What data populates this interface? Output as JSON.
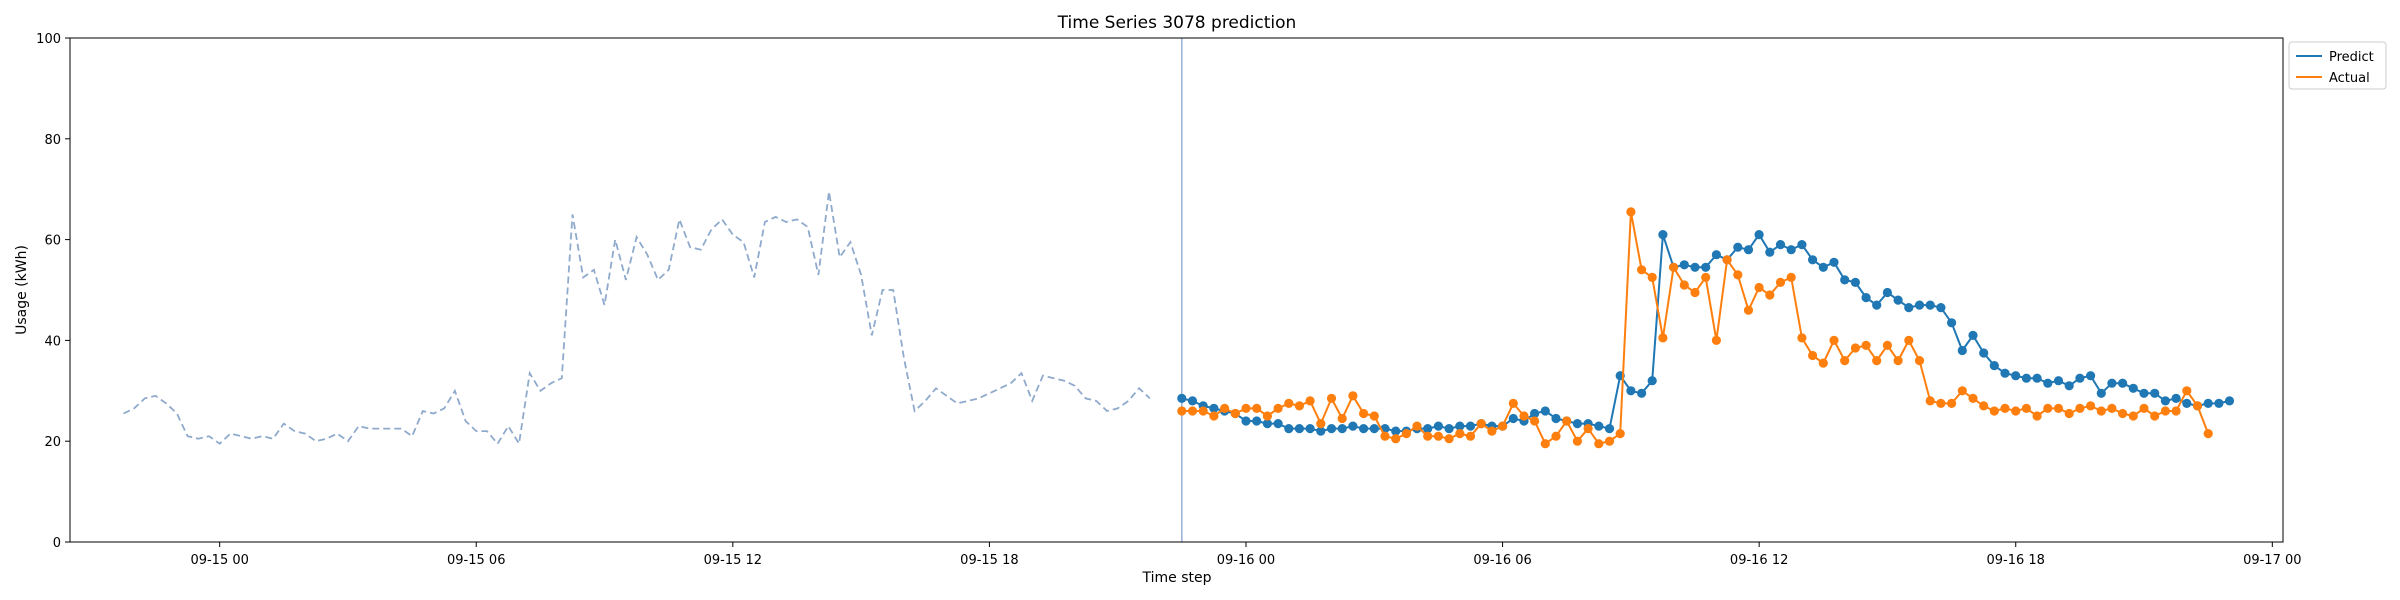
{
  "chart_data": {
    "type": "line",
    "title": "Time Series 3078 prediction",
    "xlabel": "Time step",
    "ylabel": "Usage (kWh)",
    "ylim": [
      0,
      100
    ],
    "yticks": [
      0,
      20,
      40,
      60,
      80,
      100
    ],
    "xlim_hours": [
      -7.0,
      96.5
    ],
    "xticks": [
      {
        "h": 0,
        "label": "09-15 00"
      },
      {
        "h": 12,
        "label": "09-15 06"
      },
      {
        "h": 24,
        "label": "09-15 12"
      },
      {
        "h": 36,
        "label": "09-15 18"
      },
      {
        "h": 48,
        "label": "09-16 00"
      },
      {
        "h": 60,
        "label": "09-16 06"
      },
      {
        "h": 72,
        "label": "09-16 12"
      },
      {
        "h": 84,
        "label": "09-16 18"
      },
      {
        "h": 96,
        "label": "09-17 00"
      }
    ],
    "grid": false,
    "legend_position": "top-right",
    "split_marker_hour": 45.0,
    "history": {
      "start_hour": -4.5,
      "step_hours": 0.5,
      "color": "#8faacc",
      "values": [
        25.5,
        26.5,
        28.5,
        29,
        27.5,
        25.5,
        21,
        20.5,
        21,
        19.5,
        21.5,
        21,
        20.5,
        21,
        20.5,
        23.5,
        22,
        21.5,
        20,
        20.5,
        21.5,
        20,
        23,
        22.5,
        22.5,
        22.5,
        22.5,
        21,
        26,
        25.5,
        26.5,
        30,
        24,
        22,
        22,
        19.5,
        23,
        19.5,
        33.5,
        30,
        31.5,
        32.5,
        65,
        52.5,
        54,
        47,
        60,
        52,
        60.5,
        57,
        52,
        54,
        64,
        58.5,
        58,
        62,
        64,
        61,
        59.5,
        52.5,
        63.5,
        64.5,
        63.5,
        64,
        62.5,
        53,
        69.5,
        56.5,
        59.5,
        53,
        41,
        50,
        50,
        36.5,
        26,
        28,
        30.5,
        29,
        27.5,
        28,
        28.5,
        29.5,
        30.5,
        31.5,
        33.5,
        28,
        33,
        32.5,
        32,
        31,
        28.5,
        28,
        26,
        26.5,
        28,
        30.5,
        28.5
      ]
    },
    "series": [
      {
        "name": "Predict",
        "color": "#1f77b4",
        "start_hour": 45.0,
        "step_hours": 0.5,
        "values": [
          28.5,
          28,
          27,
          26.5,
          26,
          25.5,
          24,
          24,
          23.5,
          23.5,
          22.5,
          22.5,
          22.5,
          22,
          22.5,
          22.5,
          23,
          22.5,
          22.5,
          22.5,
          22,
          22,
          22.5,
          22.5,
          23,
          22.5,
          23,
          23,
          23.5,
          23,
          23,
          24.5,
          24,
          25.5,
          26,
          24.5,
          24,
          23.5,
          23.5,
          23,
          22.5,
          33,
          30,
          29.5,
          32,
          61,
          54.5,
          55,
          54.5,
          54.5,
          57,
          56,
          58.5,
          58,
          61,
          57.5,
          59,
          58,
          59,
          56,
          54.5,
          55.5,
          52,
          51.5,
          48.5,
          47,
          49.5,
          48,
          46.5,
          47,
          47,
          46.5,
          43.5,
          38,
          41,
          37.5,
          35,
          33.5,
          33,
          32.5,
          32.5,
          31.5,
          32,
          31,
          32.5,
          33,
          29.5,
          31.5,
          31.5,
          30.5,
          29.5,
          29.5,
          28,
          28.5,
          27.5,
          27,
          27.5,
          27.5,
          28
        ]
      },
      {
        "name": "Actual",
        "color": "#ff7f0e",
        "start_hour": 45.0,
        "step_hours": 0.5,
        "values": [
          26,
          26,
          26,
          25,
          26.5,
          25.5,
          26.5,
          26.5,
          25,
          26.5,
          27.5,
          27,
          28,
          23.5,
          28.5,
          24.5,
          29,
          25.5,
          25,
          21,
          20.5,
          21.5,
          23,
          21,
          21,
          20.5,
          21.5,
          21,
          23.5,
          22,
          23,
          27.5,
          25,
          24,
          19.5,
          21,
          24,
          20,
          22.5,
          19.5,
          20,
          21.5,
          65.5,
          54,
          52.5,
          40.5,
          54.5,
          51,
          49.5,
          52.5,
          40,
          56,
          53,
          46,
          50.5,
          49,
          51.5,
          52.5,
          40.5,
          37,
          35.5,
          40,
          36,
          38.5,
          39,
          36,
          39,
          36,
          40,
          36,
          28,
          27.5,
          27.5,
          30,
          28.5,
          27,
          26,
          26.5,
          26,
          26.5,
          25,
          26.5,
          26.5,
          25.5,
          26.5,
          27,
          26,
          26.5,
          25.5,
          25,
          26.5,
          25,
          26,
          26,
          30,
          27,
          21.5
        ]
      }
    ]
  }
}
